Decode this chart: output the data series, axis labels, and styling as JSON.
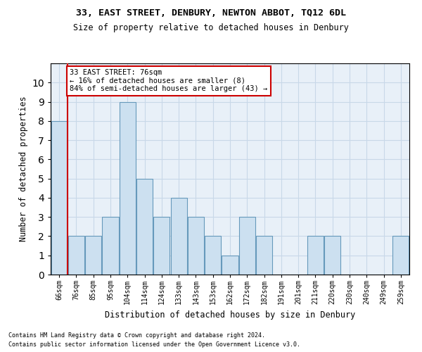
{
  "title1": "33, EAST STREET, DENBURY, NEWTON ABBOT, TQ12 6DL",
  "title2": "Size of property relative to detached houses in Denbury",
  "xlabel": "Distribution of detached houses by size in Denbury",
  "ylabel": "Number of detached properties",
  "categories": [
    "66sqm",
    "76sqm",
    "85sqm",
    "95sqm",
    "104sqm",
    "114sqm",
    "124sqm",
    "133sqm",
    "143sqm",
    "153sqm",
    "162sqm",
    "172sqm",
    "182sqm",
    "191sqm",
    "201sqm",
    "211sqm",
    "220sqm",
    "230sqm",
    "240sqm",
    "249sqm",
    "259sqm"
  ],
  "values": [
    8,
    2,
    2,
    3,
    9,
    5,
    3,
    4,
    3,
    2,
    1,
    3,
    2,
    0,
    0,
    2,
    2,
    0,
    0,
    0,
    2
  ],
  "bar_color": "#cce0f0",
  "bar_edge_color": "#6699bb",
  "vline_x_index": 1,
  "vline_color": "#cc0000",
  "annotation_text": "33 EAST STREET: 76sqm\n← 16% of detached houses are smaller (8)\n84% of semi-detached houses are larger (43) →",
  "annotation_box_color": "#ffffff",
  "annotation_box_edge_color": "#cc0000",
  "ylim": [
    0,
    11
  ],
  "yticks": [
    0,
    1,
    2,
    3,
    4,
    5,
    6,
    7,
    8,
    9,
    10
  ],
  "footer1": "Contains HM Land Registry data © Crown copyright and database right 2024.",
  "footer2": "Contains public sector information licensed under the Open Government Licence v3.0.",
  "grid_color": "#c8d8e8",
  "bg_color": "#e8f0f8"
}
